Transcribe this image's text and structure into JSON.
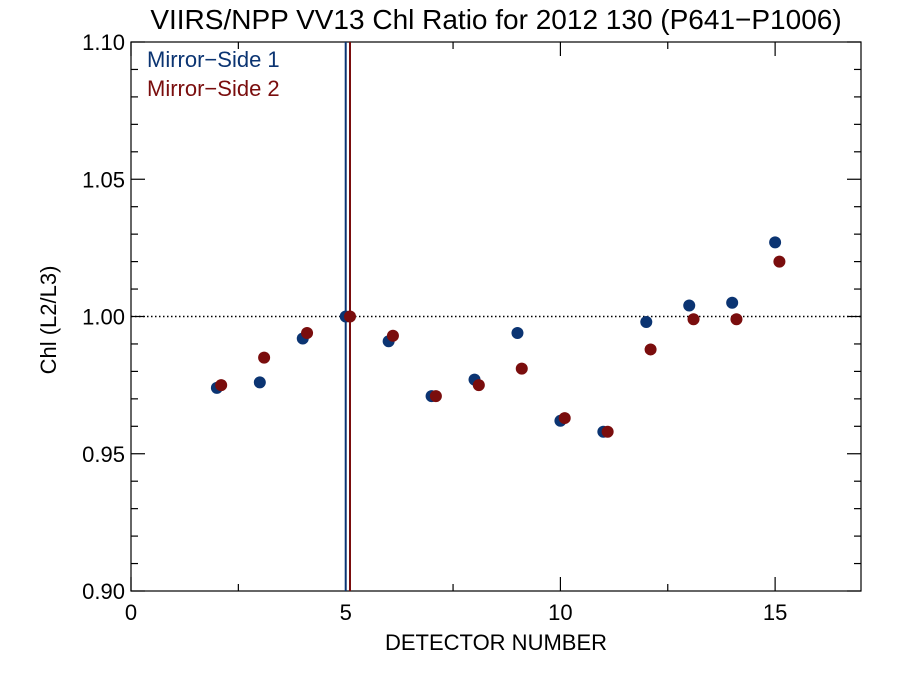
{
  "chart_data": {
    "type": "scatter",
    "title": "VIIRS/NPP VV13 Chl Ratio for 2012 130 (P641−P1006)",
    "xlabel": "DETECTOR NUMBER",
    "ylabel": "Chl (L2/L3)",
    "xlim": [
      0,
      17
    ],
    "ylim": [
      0.9,
      1.1
    ],
    "x_ticks": [
      0,
      5,
      10,
      15
    ],
    "x_tick_labels": [
      "0",
      "5",
      "10",
      "15"
    ],
    "y_ticks": [
      0.9,
      0.95,
      1.0,
      1.05,
      1.1
    ],
    "y_tick_labels": [
      "0.90",
      "0.95",
      "1.00",
      "1.05",
      "1.10"
    ],
    "reference_line_y": 1.0,
    "legend_position": "top-left",
    "series": [
      {
        "name": "Mirror−Side 1",
        "color": "#0b3472",
        "marker_line_x": 5.0,
        "points": [
          {
            "x": 2,
            "y": 0.974
          },
          {
            "x": 3,
            "y": 0.976
          },
          {
            "x": 4,
            "y": 0.992
          },
          {
            "x": 5,
            "y": 1.0
          },
          {
            "x": 6,
            "y": 0.991
          },
          {
            "x": 7,
            "y": 0.971
          },
          {
            "x": 8,
            "y": 0.977
          },
          {
            "x": 9,
            "y": 0.994
          },
          {
            "x": 10,
            "y": 0.962
          },
          {
            "x": 11,
            "y": 0.958
          },
          {
            "x": 12,
            "y": 0.998
          },
          {
            "x": 13,
            "y": 1.004
          },
          {
            "x": 14,
            "y": 1.005
          },
          {
            "x": 15,
            "y": 1.027
          }
        ]
      },
      {
        "name": "Mirror−Side 2",
        "color": "#7a0d0d",
        "marker_line_x": 5.1,
        "points": [
          {
            "x": 2.1,
            "y": 0.975
          },
          {
            "x": 3.1,
            "y": 0.985
          },
          {
            "x": 4.1,
            "y": 0.994
          },
          {
            "x": 5.1,
            "y": 1.0
          },
          {
            "x": 6.1,
            "y": 0.993
          },
          {
            "x": 7.1,
            "y": 0.971
          },
          {
            "x": 8.1,
            "y": 0.975
          },
          {
            "x": 9.1,
            "y": 0.981
          },
          {
            "x": 10.1,
            "y": 0.963
          },
          {
            "x": 11.1,
            "y": 0.958
          },
          {
            "x": 12.1,
            "y": 0.988
          },
          {
            "x": 13.1,
            "y": 0.999
          },
          {
            "x": 14.1,
            "y": 0.999
          },
          {
            "x": 15.1,
            "y": 1.02
          }
        ]
      }
    ]
  }
}
